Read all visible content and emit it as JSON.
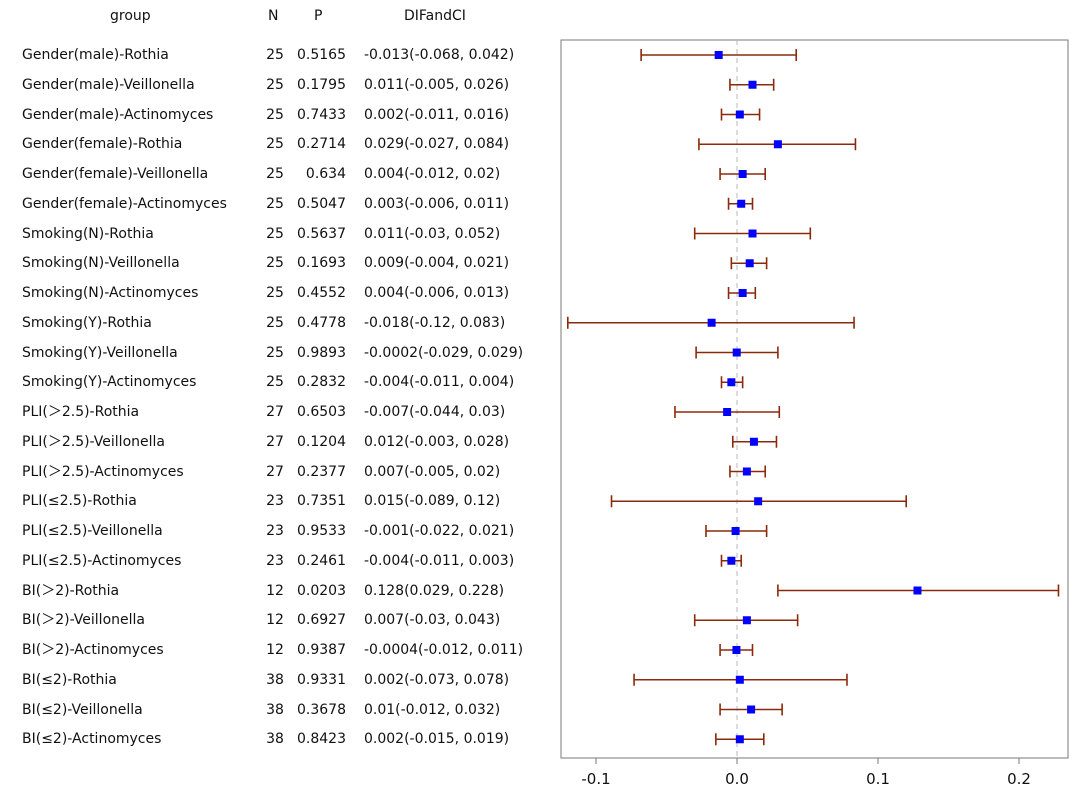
{
  "headers": {
    "group": "group",
    "n": "N",
    "p": "P",
    "ci": "DIFandCI"
  },
  "rows": [
    {
      "group": "Gender(male)-Rothia",
      "n": "25",
      "p": "0.5165",
      "ci": "-0.013(-0.068, 0.042)"
    },
    {
      "group": "Gender(male)-Veillonella",
      "n": "25",
      "p": "0.1795",
      "ci": "0.011(-0.005, 0.026)"
    },
    {
      "group": "Gender(male)-Actinomyces",
      "n": "25",
      "p": "0.7433",
      "ci": "0.002(-0.011, 0.016)"
    },
    {
      "group": "Gender(female)-Rothia",
      "n": "25",
      "p": "0.2714",
      "ci": "0.029(-0.027, 0.084)"
    },
    {
      "group": "Gender(female)-Veillonella",
      "n": "25",
      "p": "0.634",
      "ci": "0.004(-0.012, 0.02)"
    },
    {
      "group": "Gender(female)-Actinomyces",
      "n": "25",
      "p": "0.5047",
      "ci": "0.003(-0.006, 0.011)"
    },
    {
      "group": "Smoking(N)-Rothia",
      "n": "25",
      "p": "0.5637",
      "ci": "0.011(-0.03, 0.052)"
    },
    {
      "group": "Smoking(N)-Veillonella",
      "n": "25",
      "p": "0.1693",
      "ci": "0.009(-0.004, 0.021)"
    },
    {
      "group": "Smoking(N)-Actinomyces",
      "n": "25",
      "p": "0.4552",
      "ci": "0.004(-0.006, 0.013)"
    },
    {
      "group": "Smoking(Y)-Rothia",
      "n": "25",
      "p": "0.4778",
      "ci": "-0.018(-0.12, 0.083)"
    },
    {
      "group": "Smoking(Y)-Veillonella",
      "n": "25",
      "p": "0.9893",
      "ci": "-0.0002(-0.029, 0.029)"
    },
    {
      "group": "Smoking(Y)-Actinomyces",
      "n": "25",
      "p": "0.2832",
      "ci": "-0.004(-0.011, 0.004)"
    },
    {
      "group": "PLI(＞2.5)-Rothia",
      "n": "27",
      "p": "0.6503",
      "ci": "-0.007(-0.044, 0.03)"
    },
    {
      "group": "PLI(＞2.5)-Veillonella",
      "n": "27",
      "p": "0.1204",
      "ci": "0.012(-0.003, 0.028)"
    },
    {
      "group": "PLI(＞2.5)-Actinomyces",
      "n": "27",
      "p": "0.2377",
      "ci": "0.007(-0.005, 0.02)"
    },
    {
      "group": "PLI(≤2.5)-Rothia",
      "n": "23",
      "p": "0.7351",
      "ci": "0.015(-0.089, 0.12)"
    },
    {
      "group": "PLI(≤2.5)-Veillonella",
      "n": "23",
      "p": "0.9533",
      "ci": "-0.001(-0.022, 0.021)"
    },
    {
      "group": "PLI(≤2.5)-Actinomyces",
      "n": "23",
      "p": "0.2461",
      "ci": "-0.004(-0.011, 0.003)"
    },
    {
      "group": "BI(＞2)-Rothia",
      "n": "12",
      "p": "0.0203",
      "ci": "0.128(0.029, 0.228)"
    },
    {
      "group": "BI(＞2)-Veillonella",
      "n": "12",
      "p": "0.6927",
      "ci": "0.007(-0.03, 0.043)"
    },
    {
      "group": "BI(＞2)-Actinomyces",
      "n": "12",
      "p": "0.9387",
      "ci": "-0.0004(-0.012, 0.011)"
    },
    {
      "group": "BI(≤2)-Rothia",
      "n": "38",
      "p": "0.9331",
      "ci": "0.002(-0.073, 0.078)"
    },
    {
      "group": "BI(≤2)-Veillonella",
      "n": "38",
      "p": "0.3678",
      "ci": "0.01(-0.012, 0.032)"
    },
    {
      "group": "BI(≤2)-Actinomyces",
      "n": "38",
      "p": "0.8423",
      "ci": "0.002(-0.015, 0.019)"
    }
  ],
  "chart_data": {
    "type": "scatter",
    "subtype": "forest",
    "title": "",
    "xlabel": "",
    "ylabel": "",
    "xlim": [
      -0.12,
      0.23
    ],
    "xticks": [
      -0.1,
      0.0,
      0.1,
      0.2
    ],
    "xtick_labels": [
      "-0.1",
      "0.0",
      "0.1",
      "0.2"
    ],
    "reference_line": 0,
    "categories": [
      "Gender(male)-Rothia",
      "Gender(male)-Veillonella",
      "Gender(male)-Actinomyces",
      "Gender(female)-Rothia",
      "Gender(female)-Veillonella",
      "Gender(female)-Actinomyces",
      "Smoking(N)-Rothia",
      "Smoking(N)-Veillonella",
      "Smoking(N)-Actinomyces",
      "Smoking(Y)-Rothia",
      "Smoking(Y)-Veillonella",
      "Smoking(Y)-Actinomyces",
      "PLI(＞2.5)-Rothia",
      "PLI(＞2.5)-Veillonella",
      "PLI(＞2.5)-Actinomyces",
      "PLI(≤2.5)-Rothia",
      "PLI(≤2.5)-Veillonella",
      "PLI(≤2.5)-Actinomyces",
      "BI(＞2)-Rothia",
      "BI(＞2)-Veillonella",
      "BI(＞2)-Actinomyces",
      "BI(≤2)-Rothia",
      "BI(≤2)-Veillonella",
      "BI(≤2)-Actinomyces"
    ],
    "estimate": [
      -0.013,
      0.011,
      0.002,
      0.029,
      0.004,
      0.003,
      0.011,
      0.009,
      0.004,
      -0.018,
      -0.0002,
      -0.004,
      -0.007,
      0.012,
      0.007,
      0.015,
      -0.001,
      -0.004,
      0.128,
      0.007,
      -0.0004,
      0.002,
      0.01,
      0.002
    ],
    "lower": [
      -0.068,
      -0.005,
      -0.011,
      -0.027,
      -0.012,
      -0.006,
      -0.03,
      -0.004,
      -0.006,
      -0.12,
      -0.029,
      -0.011,
      -0.044,
      -0.003,
      -0.005,
      -0.089,
      -0.022,
      -0.011,
      0.029,
      -0.03,
      -0.012,
      -0.073,
      -0.012,
      -0.015
    ],
    "upper": [
      0.042,
      0.026,
      0.016,
      0.084,
      0.02,
      0.011,
      0.052,
      0.021,
      0.013,
      0.083,
      0.029,
      0.004,
      0.03,
      0.028,
      0.02,
      0.12,
      0.021,
      0.003,
      0.228,
      0.043,
      0.011,
      0.078,
      0.032,
      0.019
    ]
  },
  "colors": {
    "point": "#0000ff",
    "ci_line": "#8b2a0a",
    "ref_line": "#b8b8b8",
    "frame": "#7a7a7a",
    "text": "#111111"
  }
}
